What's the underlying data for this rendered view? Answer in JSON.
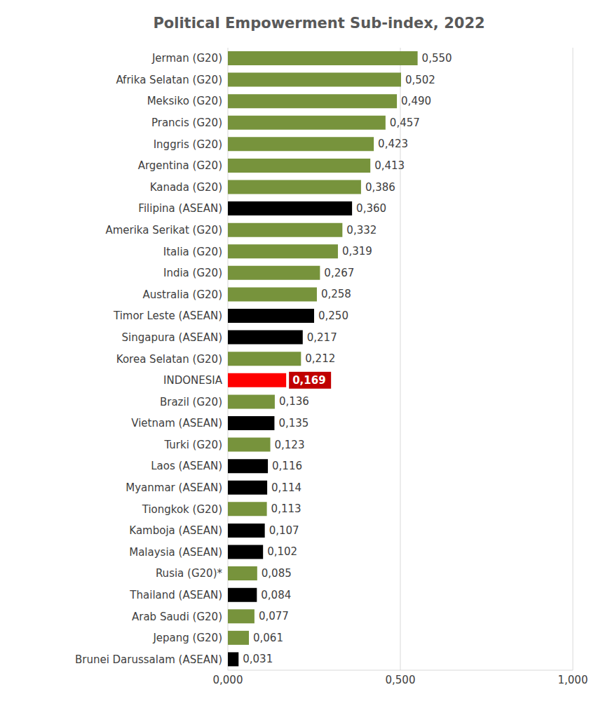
{
  "chart_data": {
    "type": "bar",
    "title": "Political Empowerment Sub-index, 2022",
    "orientation": "horizontal",
    "categories": [
      "Jerman (G20)",
      "Afrika Selatan (G20)",
      "Meksiko (G20)",
      "Prancis (G20)",
      "Inggris (G20)",
      "Argentina (G20)",
      "Kanada (G20)",
      "Filipina (ASEAN)",
      "Amerika Serikat (G20)",
      "Italia (G20)",
      "India (G20)",
      "Australia (G20)",
      "Timor Leste (ASEAN)",
      "Singapura (ASEAN)",
      "Korea Selatan (G20)",
      "INDONESIA",
      "Brazil (G20)",
      "Vietnam (ASEAN)",
      "Turki (G20)",
      "Laos (ASEAN)",
      "Myanmar (ASEAN)",
      "Tiongkok (G20)",
      "Kamboja (ASEAN)",
      "Malaysia (ASEAN)",
      "Rusia (G20)*",
      "Thailand (ASEAN)",
      "Arab Saudi (G20)",
      "Jepang (G20)",
      "Brunei Darussalam (ASEAN)"
    ],
    "values": [
      0.55,
      0.502,
      0.49,
      0.457,
      0.423,
      0.413,
      0.386,
      0.36,
      0.332,
      0.319,
      0.267,
      0.258,
      0.25,
      0.217,
      0.212,
      0.169,
      0.136,
      0.135,
      0.123,
      0.116,
      0.114,
      0.113,
      0.107,
      0.102,
      0.085,
      0.084,
      0.077,
      0.061,
      0.031
    ],
    "value_labels": [
      "0,550",
      "0,502",
      "0,490",
      "0,457",
      "0,423",
      "0,413",
      "0,386",
      "0,360",
      "0,332",
      "0,319",
      "0,267",
      "0,258",
      "0,250",
      "0,217",
      "0,212",
      "0,169",
      "0,136",
      "0,135",
      "0,123",
      "0,116",
      "0,114",
      "0,113",
      "0,107",
      "0,102",
      "0,085",
      "0,084",
      "0,077",
      "0,061",
      "0,031"
    ],
    "colors": [
      "#77933c",
      "#77933c",
      "#77933c",
      "#77933c",
      "#77933c",
      "#77933c",
      "#77933c",
      "#000000",
      "#77933c",
      "#77933c",
      "#77933c",
      "#77933c",
      "#000000",
      "#000000",
      "#77933c",
      "#ff0000",
      "#77933c",
      "#000000",
      "#77933c",
      "#000000",
      "#000000",
      "#77933c",
      "#000000",
      "#000000",
      "#77933c",
      "#000000",
      "#77933c",
      "#77933c",
      "#000000"
    ],
    "xlim": [
      0,
      1
    ],
    "xticks": [
      {
        "value": 0,
        "label": "0,000"
      },
      {
        "value": 0.5,
        "label": "0,500"
      },
      {
        "value": 1,
        "label": "1,000"
      }
    ],
    "grid": true,
    "data_labels": true
  }
}
